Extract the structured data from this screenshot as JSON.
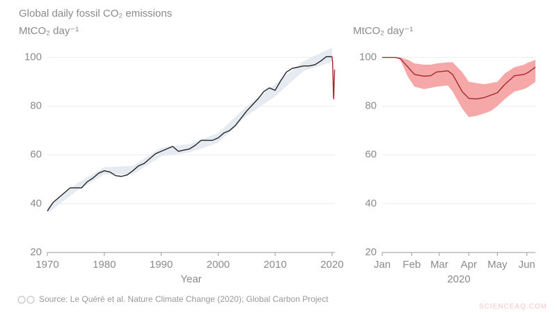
{
  "chart_data": [
    {
      "type": "line",
      "title": "Global daily fossil CO₂ emissions",
      "ylabel": "MtCO₂ day⁻¹",
      "xlabel": "Year",
      "xlim": [
        1970,
        2020.5
      ],
      "xticks": [
        1970,
        1980,
        1990,
        2000,
        2010,
        2020
      ],
      "ylim": [
        20,
        107
      ],
      "yticks": [
        20,
        40,
        60,
        80,
        100
      ],
      "grid": true,
      "series": [
        {
          "color": "#222222",
          "x": [
            1970,
            1971,
            1972,
            1973,
            1974,
            1975,
            1976,
            1977,
            1978,
            1979,
            1980,
            1981,
            1982,
            1983,
            1984,
            1985,
            1986,
            1987,
            1988,
            1989,
            1990,
            1991,
            1992,
            1993,
            1994,
            1995,
            1996,
            1997,
            1998,
            1999,
            2000,
            2001,
            2002,
            2003,
            2004,
            2005,
            2006,
            2007,
            2008,
            2009,
            2010,
            2011,
            2012,
            2013,
            2014,
            2015,
            2016,
            2017,
            2018,
            2019,
            2020
          ],
          "values": [
            37,
            40.5,
            42.5,
            44.5,
            46.5,
            46.5,
            46.5,
            49,
            50.5,
            52.5,
            53.5,
            53,
            51.5,
            51.2,
            51.8,
            53.5,
            55.5,
            56.5,
            58.5,
            60.5,
            61.5,
            62.5,
            63.5,
            61.5,
            62,
            62.5,
            64,
            66,
            66,
            66,
            67,
            69,
            70,
            72,
            75,
            78,
            80.5,
            83,
            86,
            87.5,
            86.5,
            90.5,
            94,
            95.5,
            96,
            96.5,
            96.5,
            97,
            98.5,
            100.3,
            100.3
          ]
        },
        {
          "color": "#a0282d",
          "x": [
            2020,
            2020.1,
            2020.25,
            2020.3,
            2020.35,
            2020.45
          ],
          "values": [
            100.3,
            98,
            84,
            83,
            88,
            95
          ]
        }
      ],
      "bands": [
        {
          "color": "#e6ebf1",
          "x": [
            1970,
            1975,
            1980,
            1985,
            1990,
            1995,
            2000,
            2005,
            2010,
            2015,
            2020
          ],
          "lower": [
            36,
            45,
            52,
            52,
            59.5,
            61,
            65,
            76,
            84,
            94.5,
            98
          ],
          "upper": [
            38.5,
            48,
            55,
            55.5,
            63,
            64.5,
            69,
            80,
            89,
            98.5,
            104
          ]
        }
      ]
    },
    {
      "type": "line",
      "ylabel": "MtCO₂ day⁻¹",
      "xlabel": "2020",
      "xlim": [
        1,
        162
      ],
      "xticks": [
        {
          "value": 1,
          "label": "Jan"
        },
        {
          "value": 32,
          "label": "Feb"
        },
        {
          "value": 61,
          "label": "Mar"
        },
        {
          "value": 92,
          "label": "Apr"
        },
        {
          "value": 122,
          "label": "May"
        },
        {
          "value": 153,
          "label": "Jun"
        }
      ],
      "ylim": [
        20,
        107
      ],
      "yticks": [
        20,
        40,
        60,
        80,
        100
      ],
      "grid": true,
      "series": [
        {
          "color": "#a0282d",
          "x": [
            1,
            15,
            20,
            28,
            35,
            45,
            52,
            58,
            70,
            75,
            85,
            92,
            100,
            108,
            115,
            122,
            130,
            140,
            150,
            155,
            162
          ],
          "values": [
            100,
            100,
            99.5,
            96,
            93,
            92.3,
            92.5,
            94,
            94.5,
            93,
            86,
            83.2,
            83,
            83.5,
            84.5,
            85.5,
            89,
            92.5,
            93,
            94,
            96
          ]
        }
      ],
      "bands": [
        {
          "color": "#f6a8a8",
          "x": [
            1,
            15,
            20,
            28,
            35,
            45,
            52,
            58,
            70,
            75,
            85,
            92,
            100,
            108,
            115,
            122,
            130,
            140,
            150,
            155,
            162
          ],
          "lower": [
            100,
            100,
            99,
            92,
            88,
            87,
            87.5,
            88,
            88.5,
            86,
            79,
            75.5,
            76,
            77,
            78,
            80,
            83,
            86,
            87,
            88,
            90
          ],
          "upper": [
            100,
            100,
            100,
            99,
            97.5,
            97,
            97,
            97.5,
            98,
            98,
            94,
            90,
            89.5,
            89,
            89.5,
            90,
            93.5,
            96,
            97,
            98,
            99
          ]
        }
      ]
    }
  ],
  "source": "Source: Le Quéré et al. Nature Climate Change (2020); Global Carbon Project",
  "watermark": "SCIENCEAQ.COM"
}
